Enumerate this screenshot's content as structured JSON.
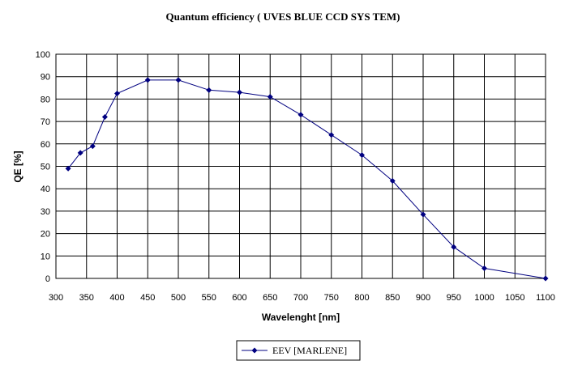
{
  "chart_data": {
    "type": "line",
    "title": "Quantum efficiency  ( UVES  BLUE CCD SYS TEM)",
    "xlabel": "Wavelenght [nm]",
    "ylabel": "QE [%]",
    "xlim": [
      300,
      1100
    ],
    "ylim": [
      0,
      100
    ],
    "x_ticks": [
      300,
      350,
      400,
      450,
      500,
      550,
      600,
      650,
      700,
      750,
      800,
      850,
      900,
      950,
      1000,
      1050,
      1100
    ],
    "y_ticks": [
      0,
      10,
      20,
      30,
      40,
      50,
      60,
      70,
      80,
      90,
      100
    ],
    "grid": true,
    "legend_position": "bottom-center",
    "series": [
      {
        "name": "EEV [MARLENE]",
        "color": "#000080",
        "marker": "diamond",
        "x": [
          320,
          340,
          360,
          380,
          400,
          450,
          500,
          550,
          600,
          650,
          700,
          750,
          800,
          850,
          900,
          950,
          1000,
          1100
        ],
        "y": [
          49,
          56,
          59,
          72,
          82.5,
          88.5,
          88.5,
          84,
          83,
          81,
          73,
          64,
          55,
          43.5,
          28.5,
          14,
          4.5,
          0
        ]
      }
    ]
  }
}
